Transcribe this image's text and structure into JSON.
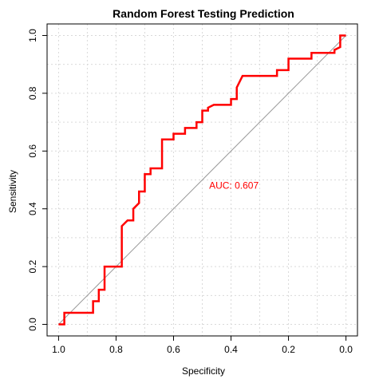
{
  "chart_data": {
    "type": "line",
    "title": "Random Forest Testing Prediction",
    "xlabel": "Specificity",
    "ylabel": "Sensitivity",
    "xlim": [
      1.04,
      -0.04
    ],
    "ylim": [
      -0.04,
      1.04
    ],
    "x_reversed": true,
    "grid": true,
    "x_ticks": [
      1.0,
      0.8,
      0.6,
      0.4,
      0.2,
      0.0
    ],
    "x_tick_labels": [
      "1.0",
      "0.8",
      "0.6",
      "0.4",
      "0.2",
      "0.0"
    ],
    "y_ticks": [
      0.0,
      0.2,
      0.4,
      0.6,
      0.8,
      1.0
    ],
    "y_tick_labels": [
      "0.0",
      "0.2",
      "0.4",
      "0.6",
      "0.8",
      "1.0"
    ],
    "grid_x": [
      1.0,
      0.9,
      0.8,
      0.7,
      0.6,
      0.5,
      0.4,
      0.3,
      0.2,
      0.1,
      0.0
    ],
    "grid_y": [
      0.0,
      0.1,
      0.2,
      0.3,
      0.4,
      0.5,
      0.6,
      0.7,
      0.8,
      0.9,
      1.0
    ],
    "series": [
      {
        "color": "#ff0000",
        "specificity": [
          1.0,
          0.98,
          0.98,
          0.88,
          0.88,
          0.86,
          0.86,
          0.84,
          0.84,
          0.78,
          0.78,
          0.76,
          0.76,
          0.74,
          0.74,
          0.72,
          0.72,
          0.7,
          0.7,
          0.68,
          0.68,
          0.64,
          0.64,
          0.6,
          0.6,
          0.56,
          0.56,
          0.52,
          0.52,
          0.5,
          0.5,
          0.48,
          0.48,
          0.46,
          0.46,
          0.4,
          0.4,
          0.38,
          0.38,
          0.36,
          0.36,
          0.24,
          0.24,
          0.2,
          0.2,
          0.12,
          0.12,
          0.04,
          0.04,
          0.02,
          0.02,
          0.0
        ],
        "sensitivity": [
          0.0,
          0.0,
          0.04,
          0.04,
          0.08,
          0.08,
          0.12,
          0.12,
          0.2,
          0.2,
          0.34,
          0.36,
          0.36,
          0.36,
          0.4,
          0.42,
          0.46,
          0.46,
          0.52,
          0.52,
          0.54,
          0.54,
          0.64,
          0.64,
          0.66,
          0.66,
          0.68,
          0.68,
          0.7,
          0.7,
          0.74,
          0.74,
          0.75,
          0.76,
          0.76,
          0.76,
          0.78,
          0.78,
          0.82,
          0.86,
          0.86,
          0.86,
          0.88,
          0.88,
          0.92,
          0.92,
          0.94,
          0.94,
          0.95,
          0.96,
          1.0,
          1.0
        ]
      }
    ],
    "reference_line": {
      "from": [
        1.0,
        0.0
      ],
      "to": [
        0.0,
        1.0
      ],
      "color": "#999999"
    },
    "annotation": {
      "text": "AUC: 0.607",
      "x": 0.39,
      "y": 0.48,
      "color": "#ff0000"
    }
  }
}
